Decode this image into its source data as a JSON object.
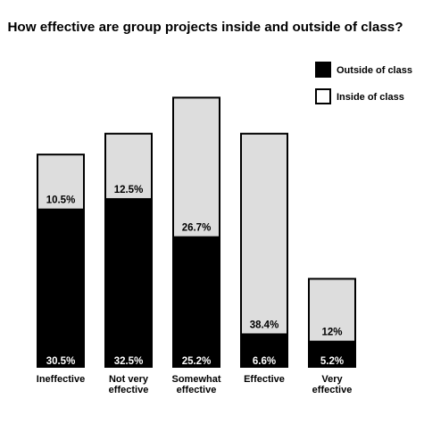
{
  "chart_data": {
    "type": "bar",
    "stacked": true,
    "title": "How effective are group projects inside and outside of class?",
    "categories": [
      "Ineffective",
      "Not very effective",
      "Somewhat effective",
      "Effective",
      "Very effective"
    ],
    "category_labels": [
      [
        "Ineffective"
      ],
      [
        "Not very",
        "effective"
      ],
      [
        "Somewhat",
        "effective"
      ],
      [
        "Effective"
      ],
      [
        "Very",
        "effective"
      ]
    ],
    "series": [
      {
        "name": "Outside of class",
        "values": [
          30.5,
          32.5,
          25.2,
          6.6,
          5.2
        ],
        "labels": [
          "30.5%",
          "32.5%",
          "25.2%",
          "6.6%",
          "5.2%"
        ],
        "color": "#000000"
      },
      {
        "name": "Inside of class",
        "values": [
          10.5,
          12.5,
          26.7,
          38.4,
          12
        ],
        "labels": [
          "10.5%",
          "12.5%",
          "26.7%",
          "38.4%",
          "12%"
        ],
        "color": "#dddddd"
      }
    ],
    "legend_position": "top-right",
    "grid": false,
    "xlabel": "",
    "ylabel": ""
  }
}
